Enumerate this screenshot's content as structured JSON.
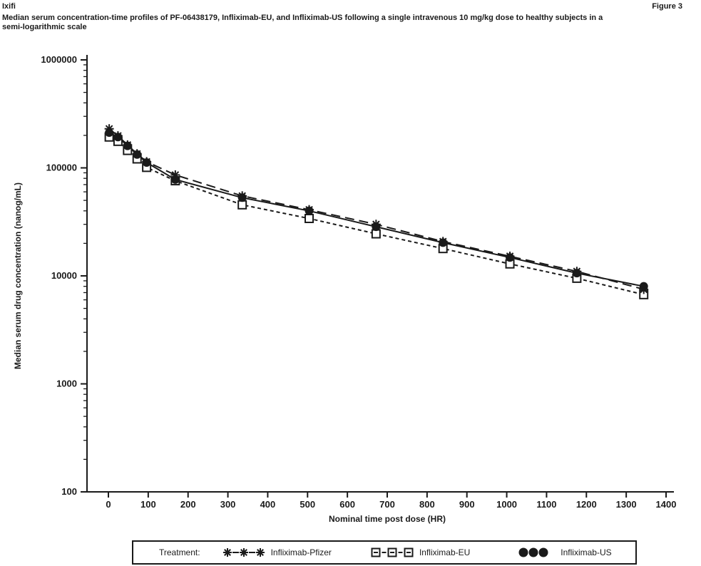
{
  "header": {
    "product": "Ixifi",
    "figure_label": "Figure 3"
  },
  "subtitle": {
    "line1": "Median serum concentration-time profiles of PF-06438179, Infliximab-EU, and Infliximab-US following a single intravenous 10 mg/kg dose to healthy subjects in a",
    "line2": "semi-logarithmic scale"
  },
  "colors": {
    "ink": "#1a1a1a",
    "background": "#ffffff"
  },
  "chart_data": {
    "type": "line",
    "title": "",
    "xlabel": "Nominal time post dose (HR)",
    "ylabel": "Median serum drug concentration (nanog/mL)",
    "y_scale": "log",
    "ylim": [
      100,
      1000000
    ],
    "y_ticks": [
      1000000,
      100000,
      10000,
      1000,
      100
    ],
    "x_ticks": [
      0,
      100,
      200,
      300,
      400,
      500,
      600,
      700,
      800,
      900,
      1000,
      1100,
      1200,
      1300,
      1400
    ],
    "grid": "off",
    "x": [
      2,
      24,
      48,
      72,
      96,
      168,
      336,
      504,
      672,
      840,
      1008,
      1176,
      1344
    ],
    "series": [
      {
        "name": "Infliximab-EU",
        "marker": "open-square",
        "line_style": "short-dash",
        "values": [
          193000,
          176000,
          145000,
          121000,
          101000,
          76000,
          45500,
          34000,
          24500,
          17900,
          12900,
          9500,
          6700
        ]
      },
      {
        "name": "Infliximab-US",
        "marker": "filled-circle",
        "line_style": "solid",
        "values": [
          212000,
          193000,
          160000,
          133000,
          112000,
          78000,
          53000,
          40000,
          28500,
          20300,
          14800,
          10600,
          8000
        ]
      },
      {
        "name": "Infliximab-Pfizer",
        "marker": "asterisk",
        "line_style": "long-dash",
        "values": [
          230000,
          198000,
          163000,
          135000,
          114000,
          86000,
          55000,
          41000,
          30000,
          20800,
          15200,
          11000,
          7500
        ]
      }
    ],
    "legend": {
      "position": "bottom",
      "prefix": "Treatment:",
      "order": [
        "Infliximab-Pfizer",
        "Infliximab-EU",
        "Infliximab-US"
      ]
    }
  }
}
